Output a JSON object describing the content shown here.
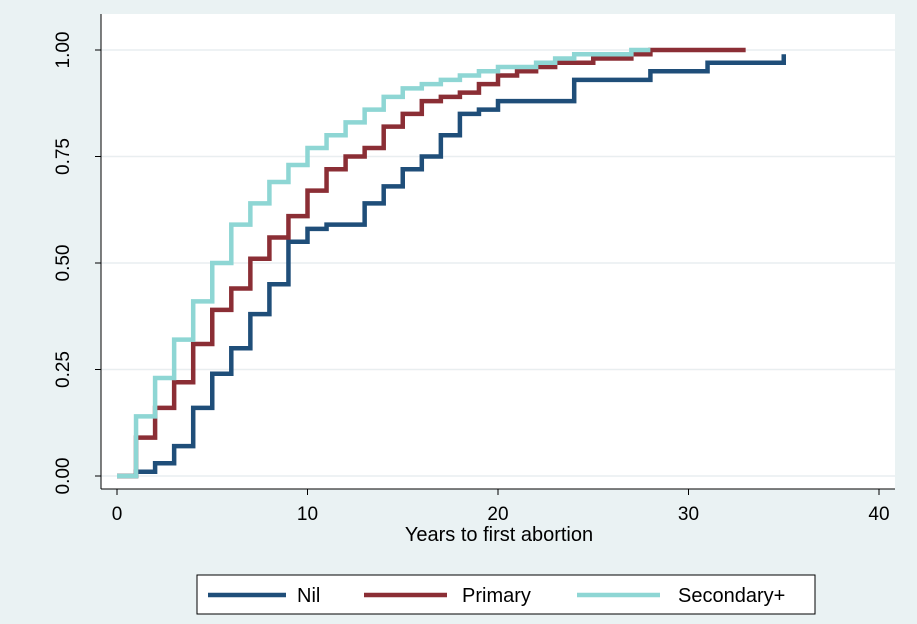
{
  "chart_data": {
    "type": "line",
    "step": true,
    "xlabel": "Years to first abortion",
    "ylabel": "",
    "xlim": [
      0,
      40
    ],
    "ylim": [
      0,
      1
    ],
    "x_ticks": [
      "0",
      "10",
      "20",
      "30",
      "40"
    ],
    "y_ticks": [
      "0.00",
      "0.25",
      "0.50",
      "0.75",
      "1.00"
    ],
    "grid": true,
    "legend_position": "bottom",
    "series": [
      {
        "name": "Nil",
        "color": "#1f4e79",
        "x": [
          0,
          1,
          2,
          3,
          4,
          5,
          6,
          7,
          8,
          9,
          10,
          11,
          13,
          14,
          15,
          16,
          17,
          18,
          19,
          20,
          22,
          23,
          24,
          27,
          28,
          31,
          35
        ],
        "y": [
          0.0,
          0.01,
          0.03,
          0.07,
          0.16,
          0.24,
          0.3,
          0.38,
          0.45,
          0.55,
          0.58,
          0.59,
          0.64,
          0.68,
          0.72,
          0.75,
          0.8,
          0.85,
          0.86,
          0.88,
          0.88,
          0.88,
          0.93,
          0.93,
          0.95,
          0.97,
          0.99
        ]
      },
      {
        "name": "Primary",
        "color": "#8b2e35",
        "x": [
          0,
          1,
          2,
          3,
          4,
          5,
          6,
          7,
          8,
          9,
          10,
          11,
          12,
          13,
          14,
          15,
          16,
          17,
          18,
          19,
          20,
          21,
          22,
          23,
          24,
          25,
          27,
          28,
          33
        ],
        "y": [
          0.0,
          0.09,
          0.16,
          0.22,
          0.31,
          0.39,
          0.44,
          0.51,
          0.56,
          0.61,
          0.67,
          0.72,
          0.75,
          0.77,
          0.82,
          0.85,
          0.88,
          0.89,
          0.9,
          0.92,
          0.94,
          0.95,
          0.96,
          0.97,
          0.97,
          0.98,
          0.99,
          1.0,
          1.0
        ]
      },
      {
        "name": "Secondary+",
        "color": "#8ed6d4",
        "x": [
          0,
          1,
          2,
          3,
          4,
          5,
          6,
          7,
          8,
          9,
          10,
          11,
          12,
          13,
          14,
          15,
          16,
          17,
          18,
          19,
          20,
          22,
          23,
          24,
          26,
          27,
          28
        ],
        "y": [
          0.0,
          0.14,
          0.23,
          0.32,
          0.41,
          0.5,
          0.59,
          0.64,
          0.69,
          0.73,
          0.77,
          0.8,
          0.83,
          0.86,
          0.89,
          0.91,
          0.92,
          0.93,
          0.94,
          0.95,
          0.96,
          0.97,
          0.98,
          0.99,
          0.99,
          1.0,
          1.0
        ]
      }
    ]
  }
}
